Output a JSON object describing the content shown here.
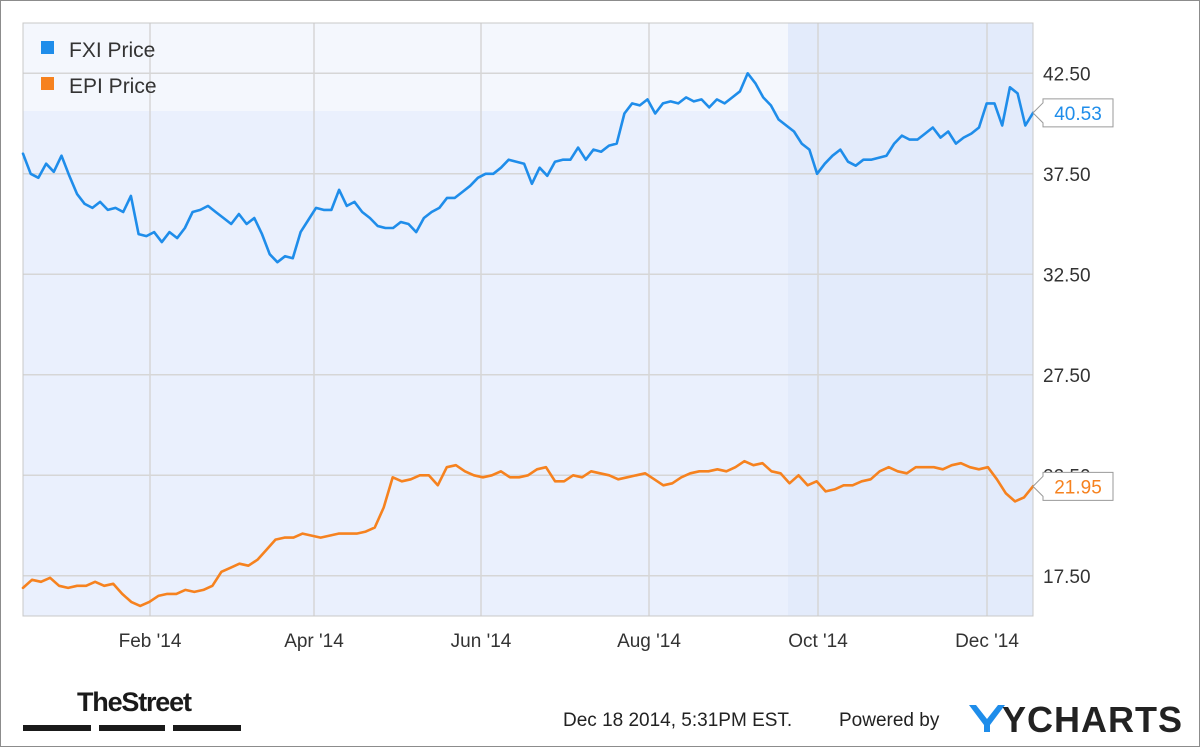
{
  "chart_data": {
    "type": "line",
    "x_tick_labels": [
      "Feb '14",
      "Apr '14",
      "Jun '14",
      "Aug '14",
      "Oct '14",
      "Dec '14"
    ],
    "y_tick_labels": [
      "42.50",
      "37.50",
      "32.50",
      "27.50",
      "22.50",
      "17.50"
    ],
    "ylim": [
      15.5,
      45.0
    ],
    "grid": true,
    "legend_position": "top-left",
    "series": [
      {
        "name": "FXI Price",
        "color": "#1f8dea",
        "last_value_label": "40.53",
        "last_value": 40.53,
        "values": [
          38.5,
          37.5,
          37.3,
          38.0,
          37.6,
          38.4,
          37.4,
          36.5,
          36.0,
          35.8,
          36.1,
          35.7,
          35.8,
          35.6,
          36.4,
          34.5,
          34.4,
          34.6,
          34.1,
          34.6,
          34.3,
          34.8,
          35.6,
          35.7,
          35.9,
          35.6,
          35.3,
          35.0,
          35.5,
          35.0,
          35.3,
          34.5,
          33.5,
          33.1,
          33.4,
          33.3,
          34.6,
          35.2,
          35.8,
          35.7,
          35.7,
          36.7,
          35.9,
          36.1,
          35.6,
          35.3,
          34.9,
          34.8,
          34.8,
          35.1,
          35.0,
          34.6,
          35.3,
          35.6,
          35.8,
          36.3,
          36.3,
          36.6,
          36.9,
          37.3,
          37.5,
          37.5,
          37.8,
          38.2,
          38.1,
          38.0,
          37.0,
          37.8,
          37.4,
          38.1,
          38.2,
          38.2,
          38.8,
          38.2,
          38.7,
          38.6,
          38.9,
          39.0,
          40.5,
          41.0,
          40.9,
          41.2,
          40.5,
          41.0,
          41.1,
          41.0,
          41.3,
          41.1,
          41.2,
          40.8,
          41.2,
          41.0,
          41.3,
          41.6,
          42.5,
          42.0,
          41.3,
          40.9,
          40.2,
          39.9,
          39.6,
          39.0,
          38.7,
          37.5,
          38.0,
          38.4,
          38.7,
          38.1,
          37.9,
          38.2,
          38.2,
          38.3,
          38.4,
          39.0,
          39.4,
          39.2,
          39.2,
          39.5,
          39.8,
          39.3,
          39.6,
          39.0,
          39.3,
          39.5,
          39.8,
          41.0,
          41.0,
          39.9,
          41.8,
          41.5,
          39.9,
          40.53
        ]
      },
      {
        "name": "EPI Price",
        "color": "#f6821f",
        "last_value_label": "21.95",
        "last_value": 21.95,
        "values": [
          16.9,
          17.3,
          17.2,
          17.4,
          17.0,
          16.9,
          17.0,
          17.0,
          17.2,
          17.0,
          17.1,
          16.6,
          16.2,
          16.0,
          16.2,
          16.5,
          16.6,
          16.6,
          16.8,
          16.7,
          16.8,
          17.0,
          17.7,
          17.9,
          18.1,
          18.0,
          18.3,
          18.8,
          19.3,
          19.4,
          19.4,
          19.6,
          19.5,
          19.4,
          19.5,
          19.6,
          19.6,
          19.6,
          19.7,
          19.9,
          20.9,
          22.4,
          22.2,
          22.3,
          22.5,
          22.5,
          22.0,
          22.9,
          23.0,
          22.7,
          22.5,
          22.4,
          22.5,
          22.7,
          22.4,
          22.4,
          22.5,
          22.8,
          22.9,
          22.2,
          22.2,
          22.5,
          22.4,
          22.7,
          22.6,
          22.5,
          22.3,
          22.4,
          22.5,
          22.6,
          22.3,
          22.0,
          22.1,
          22.4,
          22.6,
          22.7,
          22.7,
          22.8,
          22.7,
          22.9,
          23.2,
          23.0,
          23.1,
          22.7,
          22.6,
          22.1,
          22.5,
          22.0,
          22.2,
          21.7,
          21.8,
          22.0,
          22.0,
          22.2,
          22.3,
          22.7,
          22.9,
          22.7,
          22.6,
          22.9,
          22.9,
          22.9,
          22.8,
          23.0,
          23.1,
          22.9,
          22.8,
          22.9,
          22.3,
          21.6,
          21.2,
          21.4,
          21.95
        ]
      }
    ]
  },
  "footer": {
    "timestamp": "Dec 18 2014, 5:31PM EST.",
    "powered_by": "Powered by",
    "brand": "YCHARTS",
    "publisher_logo": "TheStreet"
  }
}
